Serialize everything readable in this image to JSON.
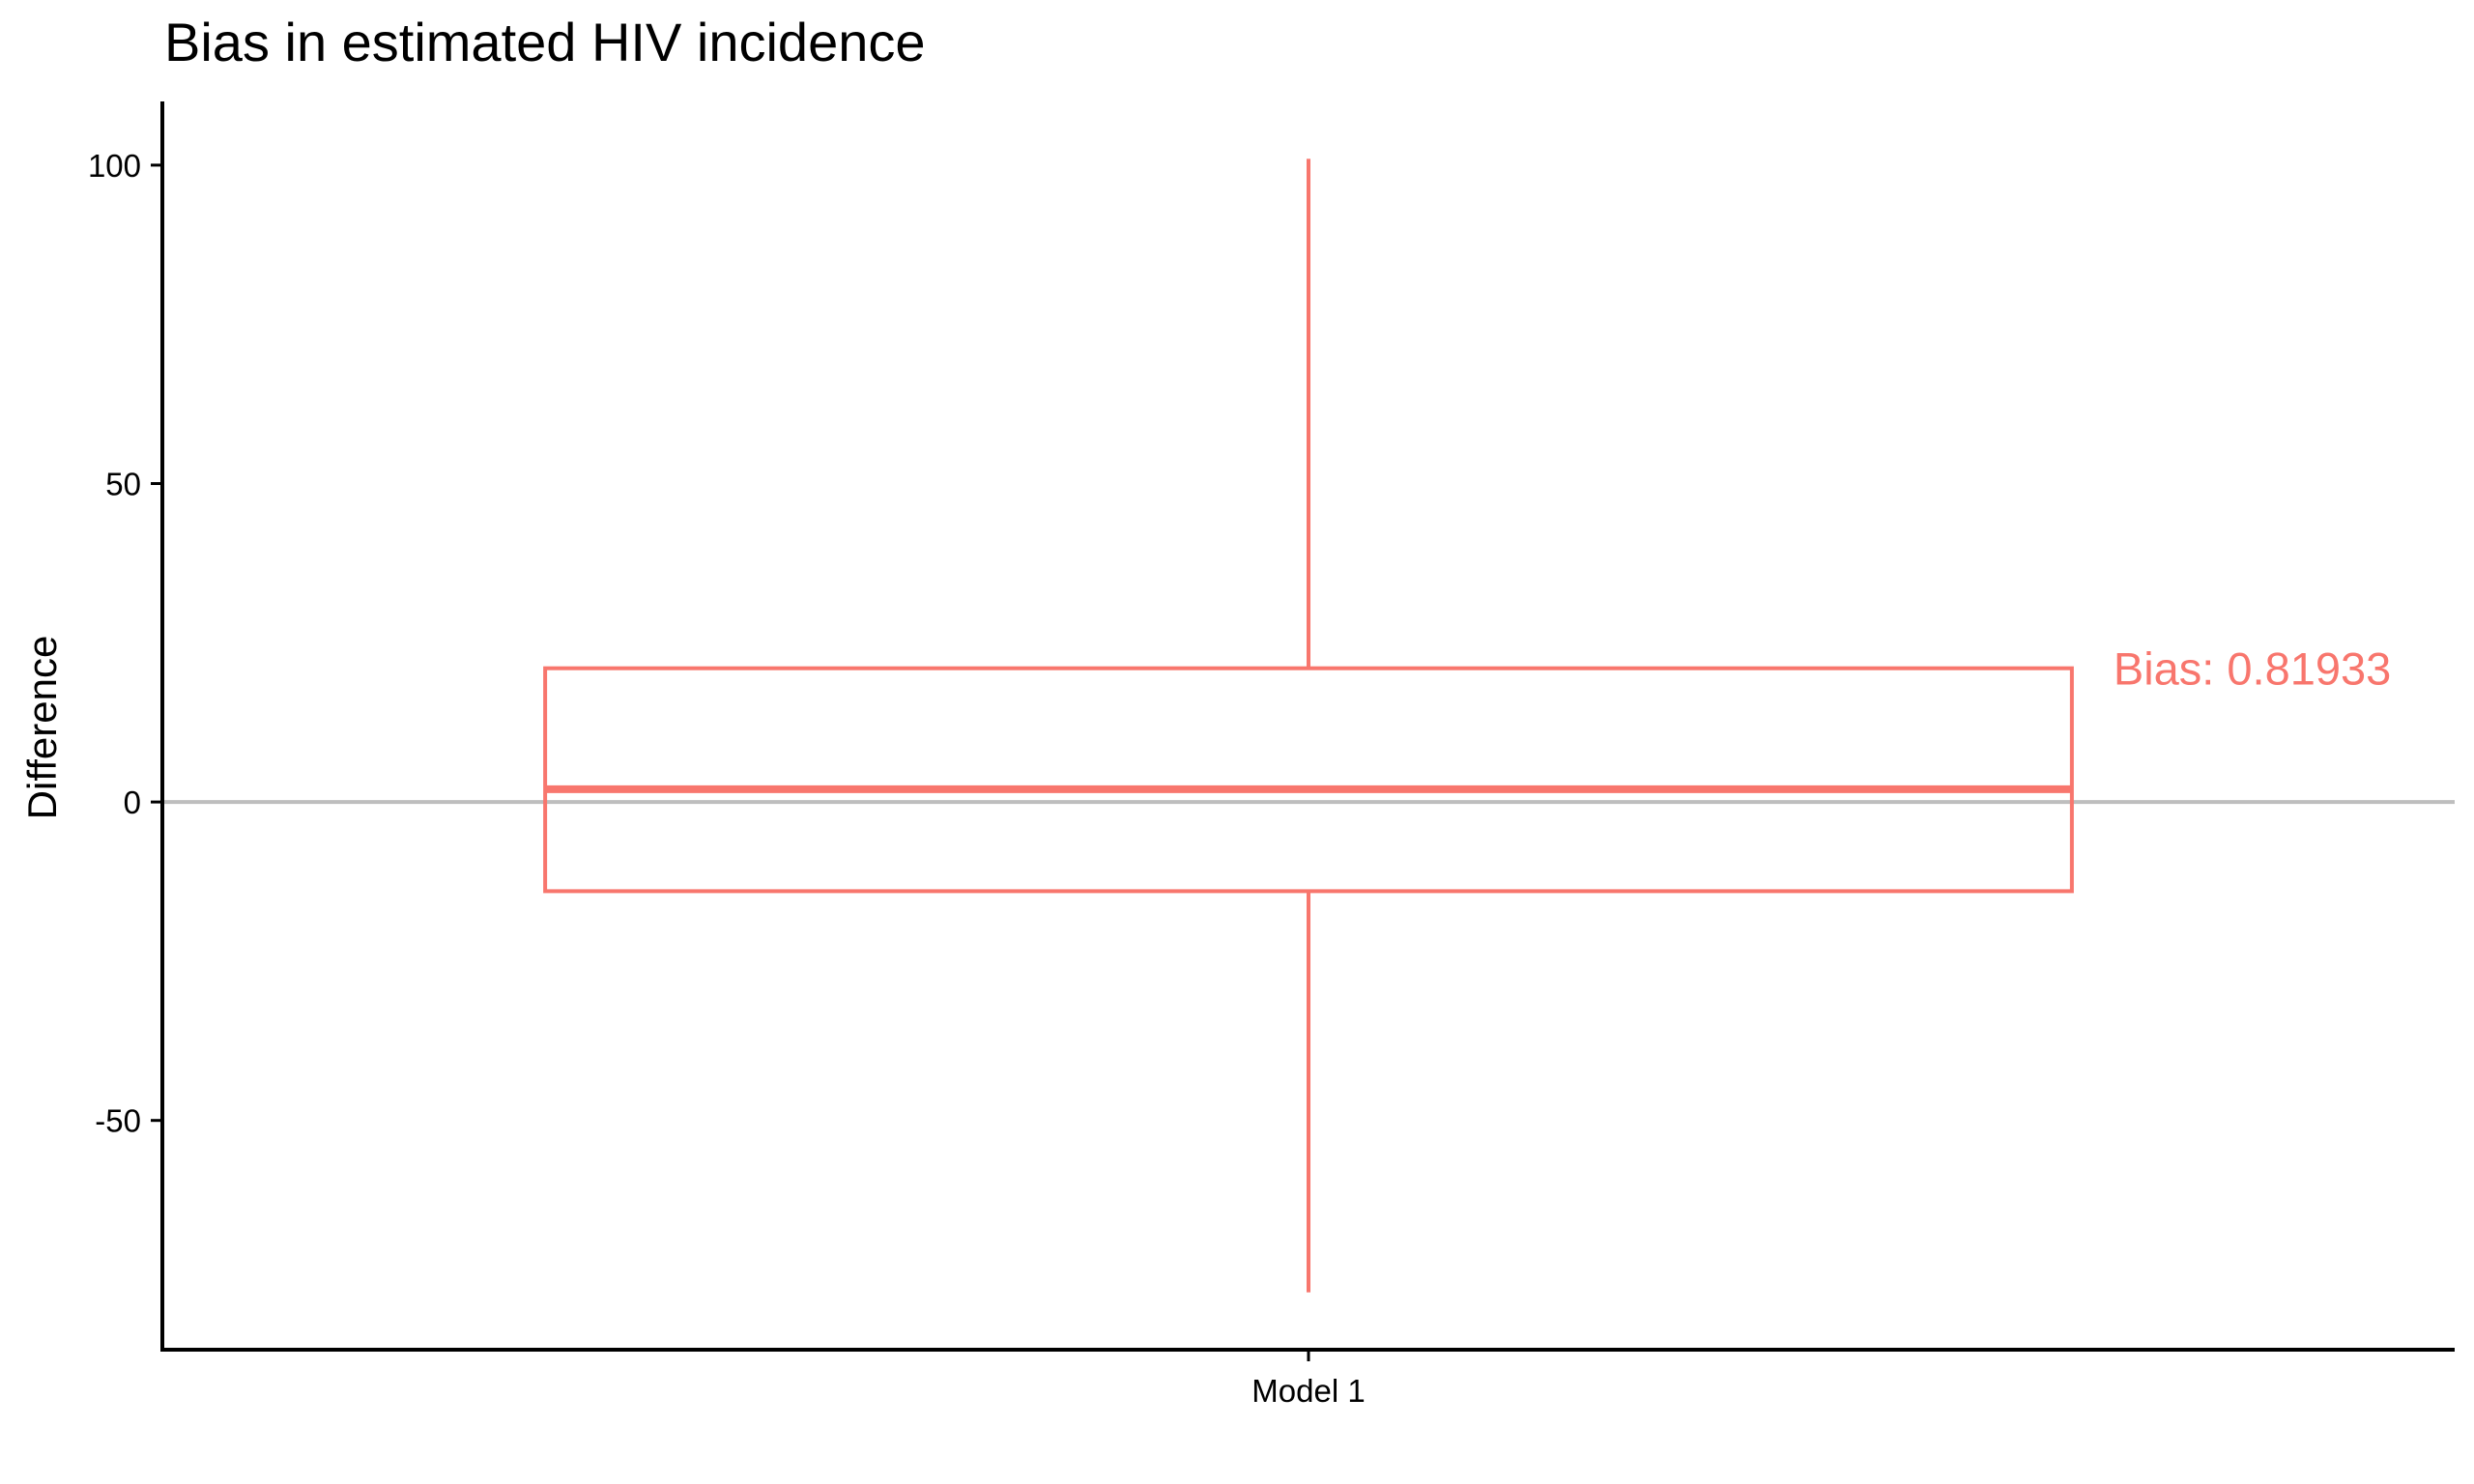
{
  "chart_data": {
    "type": "box",
    "title": "Bias in estimated HIV incidence",
    "xlabel": "",
    "ylabel": "Difference",
    "ylim": [
      -86,
      110
    ],
    "yticks": [
      -50,
      0,
      50,
      100
    ],
    "ytick_labels": [
      "-50",
      "0",
      "50",
      "100"
    ],
    "categories": [
      "Model 1"
    ],
    "series": [
      {
        "category": "Model 1",
        "min": -77,
        "q1": -14,
        "median": 2,
        "q3": 21,
        "max": 101,
        "color": "#F8766D"
      }
    ],
    "reference_line": {
      "y": 0,
      "color": "#BEBEBE"
    },
    "annotations": [
      {
        "text": "Bias: 0.81933",
        "x_category": "Model 1",
        "y": 21,
        "color": "#F8766D"
      }
    ],
    "grid": false,
    "legend": "none"
  }
}
